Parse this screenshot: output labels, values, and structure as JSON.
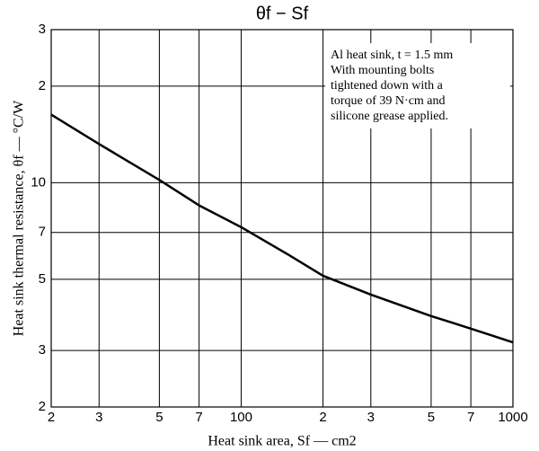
{
  "chart_data": {
    "type": "line",
    "title": "θf − Sf",
    "xlabel": "Heat sink area, Sf — cm2",
    "ylabel": "Heat sink thermal resistance, θf — °C/W",
    "annotation": [
      "Al heat sink, t = 1.5 mm",
      "With mounting bolts",
      "tightened down with a",
      "torque of 39 N·cm and",
      "silicone grease applied."
    ],
    "x": [
      20,
      30,
      50,
      70,
      100,
      150,
      200,
      300,
      500,
      700,
      1000
    ],
    "series": [
      {
        "name": "θf",
        "color": "#000000",
        "values": [
          16.3,
          13.2,
          10.2,
          8.5,
          7.27,
          5.95,
          5.13,
          4.48,
          3.84,
          3.51,
          3.18
        ]
      }
    ],
    "xlog": true,
    "ylog": true,
    "grid": true,
    "xlim": [
      20,
      1000
    ],
    "xticks": [
      {
        "value": 20,
        "label": "2"
      },
      {
        "value": 30,
        "label": "3"
      },
      {
        "value": 50,
        "label": "5"
      },
      {
        "value": 70,
        "label": "7"
      },
      100,
      {
        "value": 200,
        "label": "2"
      },
      {
        "value": 300,
        "label": "3"
      },
      {
        "value": 500,
        "label": "5"
      },
      {
        "value": 700,
        "label": "7"
      },
      1000
    ],
    "ylim": [
      2,
      30
    ],
    "yticks": [
      2,
      3,
      5,
      7,
      10,
      {
        "value": 20,
        "label": "2"
      },
      {
        "value": 30,
        "label": "3"
      }
    ]
  }
}
